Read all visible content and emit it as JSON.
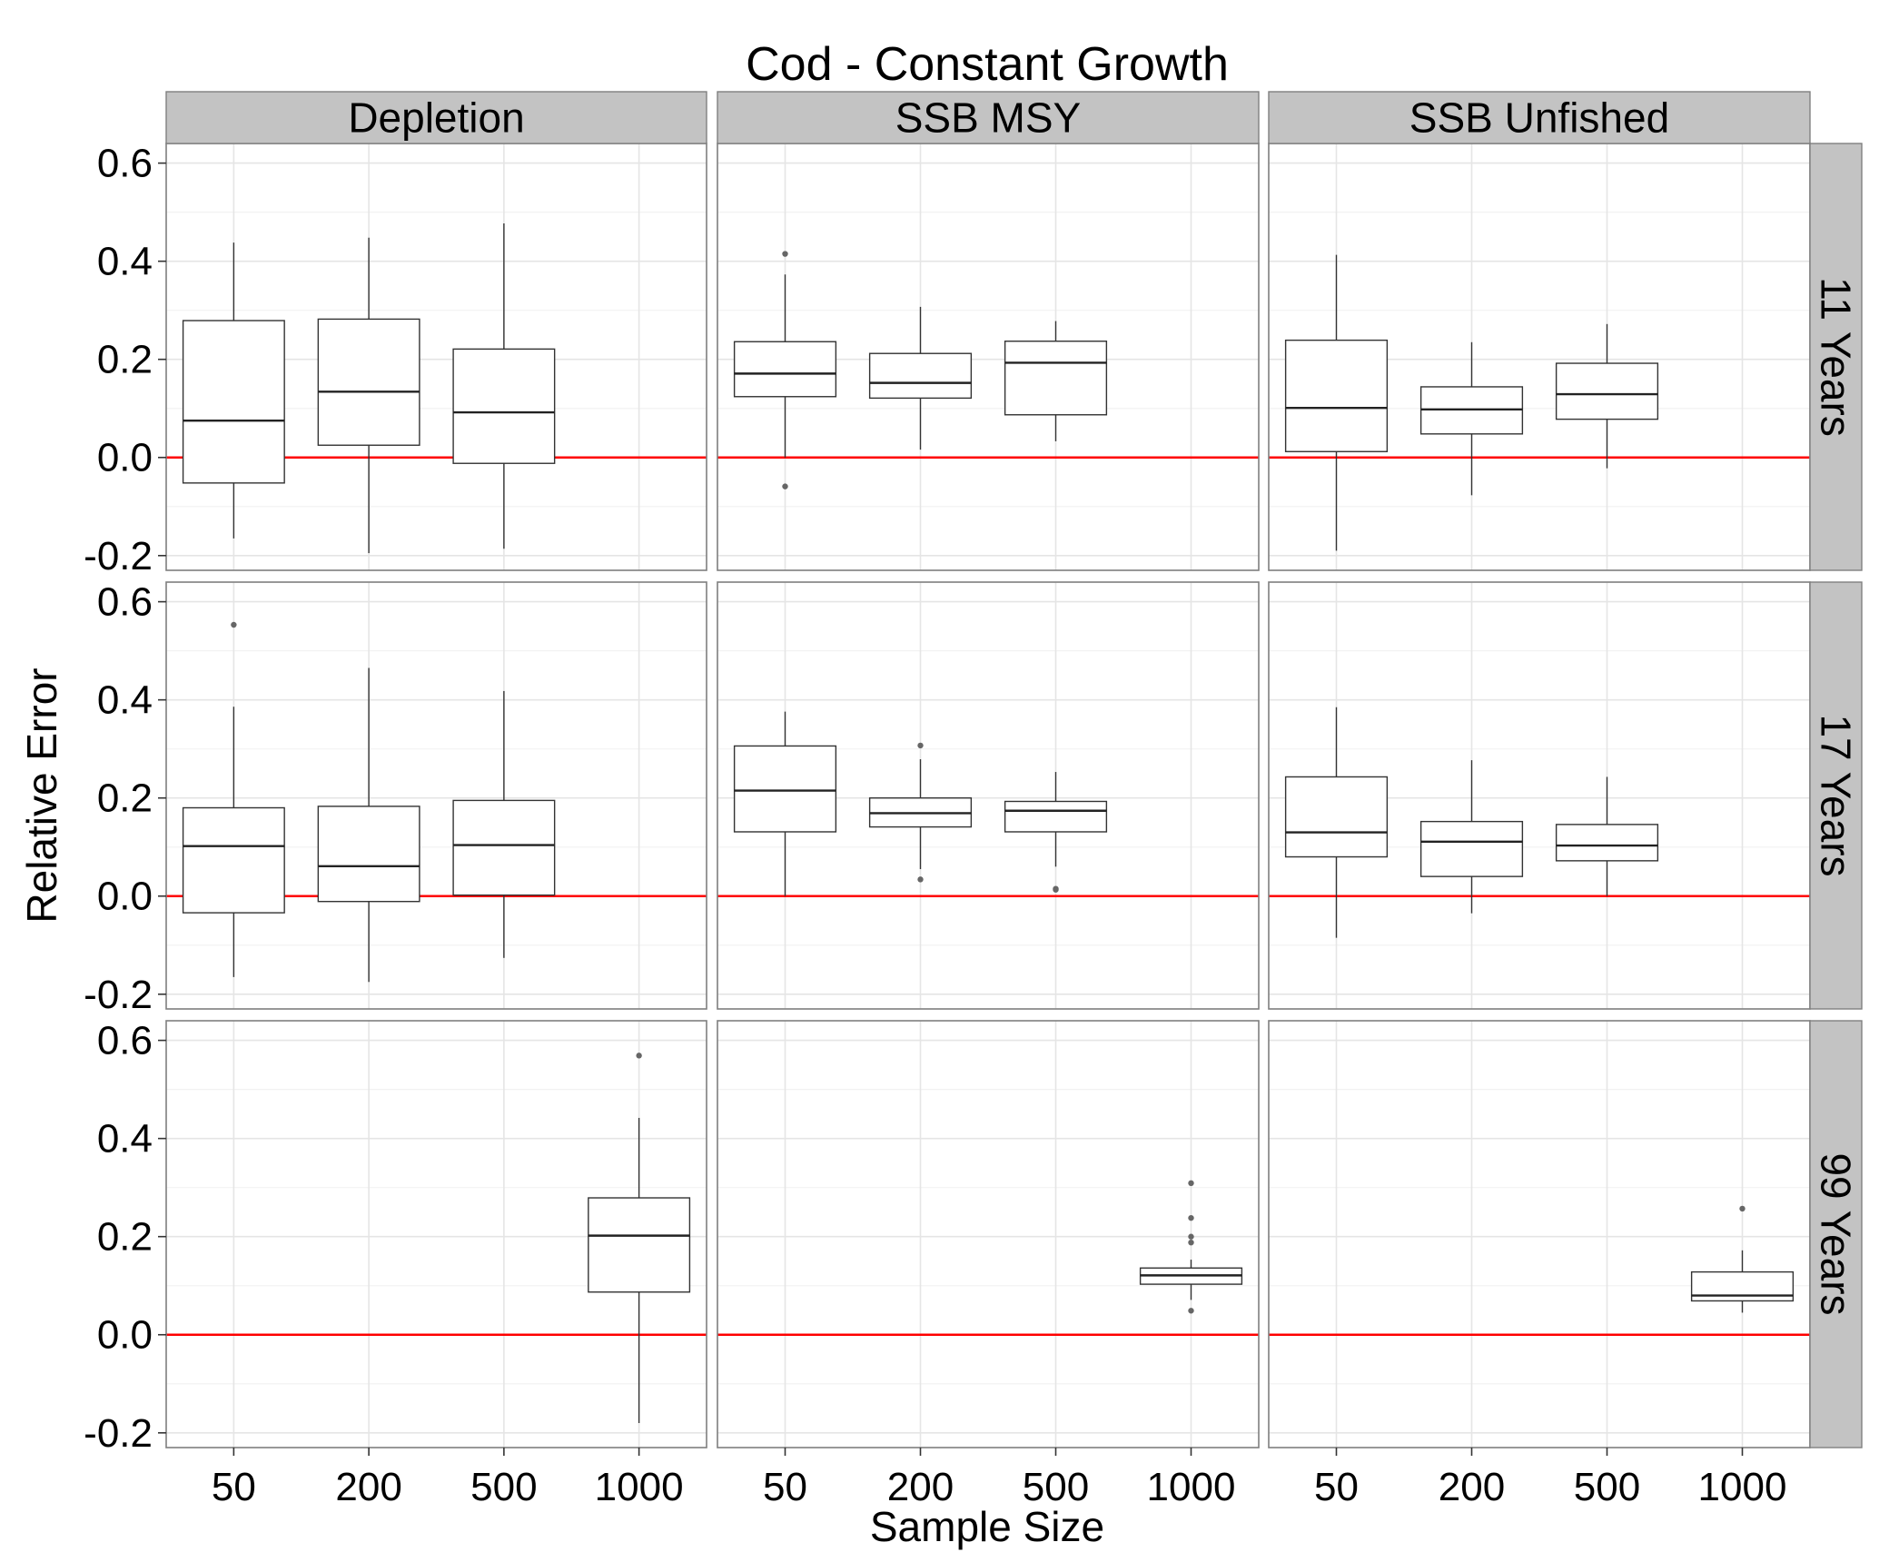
{
  "chart_data": {
    "type": "boxplot",
    "title": "Cod - Constant Growth",
    "xlabel": "Sample Size",
    "ylabel": "Relative Error",
    "x_categories": [
      "50",
      "200",
      "500",
      "1000"
    ],
    "ylim": [
      -0.23,
      0.64
    ],
    "y_ticks": [
      -0.2,
      0.0,
      0.2,
      0.4,
      0.6
    ],
    "y_tick_labels": [
      "-0.2",
      "0.0",
      "0.2",
      "0.4",
      "0.6"
    ],
    "reference_line": {
      "y": 0.0,
      "color": "#ff0000"
    },
    "grid": true,
    "column_facets": [
      "Depletion",
      "SSB MSY",
      "SSB Unfished"
    ],
    "row_facets": [
      "11 Years",
      "17 Years",
      "99 Years"
    ],
    "panels": [
      {
        "row": 0,
        "col": 0,
        "boxes": [
          {
            "x": "50",
            "min": -0.165,
            "q1": -0.052,
            "median": 0.075,
            "q3": 0.279,
            "max": 0.438,
            "outliers": []
          },
          {
            "x": "200",
            "min": -0.195,
            "q1": 0.025,
            "median": 0.134,
            "q3": 0.282,
            "max": 0.448,
            "outliers": []
          },
          {
            "x": "500",
            "min": -0.186,
            "q1": -0.012,
            "median": 0.092,
            "q3": 0.221,
            "max": 0.477,
            "outliers": []
          }
        ]
      },
      {
        "row": 0,
        "col": 1,
        "boxes": [
          {
            "x": "50",
            "min": 0.0,
            "q1": 0.124,
            "median": 0.171,
            "q3": 0.236,
            "max": 0.373,
            "outliers": [
              0.415,
              -0.059
            ]
          },
          {
            "x": "200",
            "min": 0.016,
            "q1": 0.121,
            "median": 0.152,
            "q3": 0.212,
            "max": 0.307,
            "outliers": []
          },
          {
            "x": "500",
            "min": 0.033,
            "q1": 0.087,
            "median": 0.193,
            "q3": 0.237,
            "max": 0.278,
            "outliers": []
          }
        ]
      },
      {
        "row": 0,
        "col": 2,
        "boxes": [
          {
            "x": "50",
            "min": -0.19,
            "q1": 0.012,
            "median": 0.101,
            "q3": 0.239,
            "max": 0.413,
            "outliers": []
          },
          {
            "x": "200",
            "min": -0.077,
            "q1": 0.048,
            "median": 0.098,
            "q3": 0.144,
            "max": 0.235,
            "outliers": []
          },
          {
            "x": "500",
            "min": -0.022,
            "q1": 0.078,
            "median": 0.129,
            "q3": 0.192,
            "max": 0.272,
            "outliers": []
          }
        ]
      },
      {
        "row": 1,
        "col": 0,
        "boxes": [
          {
            "x": "50",
            "min": -0.165,
            "q1": -0.034,
            "median": 0.102,
            "q3": 0.18,
            "max": 0.386,
            "outliers": [
              0.553
            ]
          },
          {
            "x": "200",
            "min": -0.175,
            "q1": -0.011,
            "median": 0.061,
            "q3": 0.183,
            "max": 0.465,
            "outliers": []
          },
          {
            "x": "500",
            "min": -0.126,
            "q1": 0.002,
            "median": 0.104,
            "q3": 0.195,
            "max": 0.418,
            "outliers": []
          }
        ]
      },
      {
        "row": 1,
        "col": 1,
        "boxes": [
          {
            "x": "50",
            "min": 0.0,
            "q1": 0.131,
            "median": 0.215,
            "q3": 0.306,
            "max": 0.376,
            "outliers": []
          },
          {
            "x": "200",
            "min": 0.055,
            "q1": 0.141,
            "median": 0.169,
            "q3": 0.2,
            "max": 0.279,
            "outliers": [
              0.307,
              0.034
            ]
          },
          {
            "x": "500",
            "min": 0.06,
            "q1": 0.131,
            "median": 0.174,
            "q3": 0.193,
            "max": 0.253,
            "outliers": [
              0.015,
              0.013
            ]
          }
        ]
      },
      {
        "row": 1,
        "col": 2,
        "boxes": [
          {
            "x": "50",
            "min": -0.085,
            "q1": 0.08,
            "median": 0.13,
            "q3": 0.243,
            "max": 0.385,
            "outliers": []
          },
          {
            "x": "200",
            "min": -0.035,
            "q1": 0.04,
            "median": 0.111,
            "q3": 0.152,
            "max": 0.277,
            "outliers": []
          },
          {
            "x": "500",
            "min": 0.0,
            "q1": 0.072,
            "median": 0.103,
            "q3": 0.146,
            "max": 0.243,
            "outliers": []
          }
        ]
      },
      {
        "row": 2,
        "col": 0,
        "boxes": [
          {
            "x": "1000",
            "min": -0.18,
            "q1": 0.087,
            "median": 0.202,
            "q3": 0.279,
            "max": 0.442,
            "outliers": [
              0.569
            ]
          }
        ]
      },
      {
        "row": 2,
        "col": 1,
        "boxes": [
          {
            "x": "1000",
            "min": 0.071,
            "q1": 0.103,
            "median": 0.121,
            "q3": 0.136,
            "max": 0.153,
            "outliers": [
              0.309,
              0.238,
              0.2,
              0.188,
              0.049
            ]
          }
        ]
      },
      {
        "row": 2,
        "col": 2,
        "boxes": [
          {
            "x": "1000",
            "min": 0.045,
            "q1": 0.069,
            "median": 0.08,
            "q3": 0.128,
            "max": 0.172,
            "outliers": [
              0.257
            ]
          }
        ]
      }
    ]
  }
}
